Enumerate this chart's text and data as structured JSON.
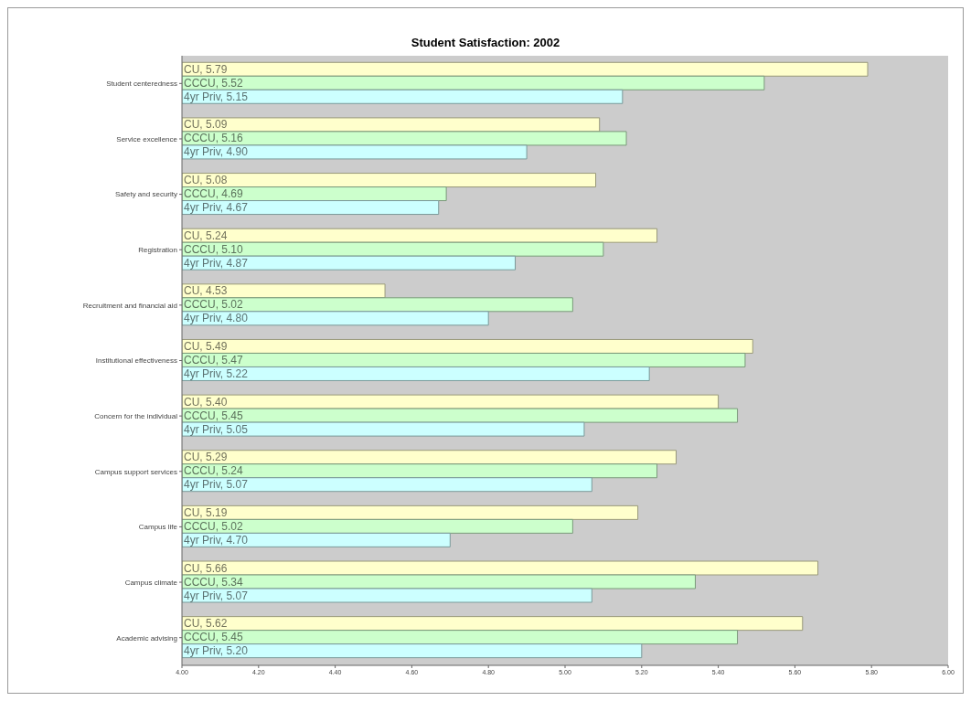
{
  "chart_data": {
    "type": "bar",
    "title": "Student Satisfaction: 2002",
    "orientation": "horizontal",
    "categories": [
      "Student centeredness",
      "Service excellence",
      "Safety and security",
      "Registration",
      "Recruitment and financial aid",
      "Institutional effectiveness",
      "Concern for the individual",
      "Campus support services",
      "Campus life",
      "Campus climate",
      "Academic advising"
    ],
    "series": [
      {
        "name": "CU",
        "color": "#ffffcc",
        "values": [
          5.79,
          5.09,
          5.08,
          5.24,
          4.53,
          5.49,
          5.4,
          5.29,
          5.19,
          5.66,
          5.62
        ],
        "value_labels": [
          ", 5.79",
          ", 5.09",
          ", 5.08",
          ", 5.24",
          ", 4.53",
          ", 5.49",
          ", 5.40",
          ", 5.29",
          ", 5.19",
          ", 5.66",
          ", 5.62"
        ]
      },
      {
        "name": "CCCU",
        "color": "#ccffcc",
        "values": [
          5.52,
          5.16,
          4.69,
          5.1,
          5.02,
          5.47,
          5.45,
          5.24,
          5.02,
          5.34,
          5.45
        ],
        "value_labels": [
          ", 5.52",
          ", 5.16",
          ", 4.69",
          ", 5.10",
          ", 5.02",
          ", 5.47",
          ", 5.45",
          ", 5.24",
          ", 5.02",
          ", 5.34",
          ", 5.45"
        ]
      },
      {
        "name": "4yr Priv",
        "color": "#ccffff",
        "values": [
          5.15,
          4.9,
          4.67,
          4.87,
          4.8,
          5.22,
          5.05,
          5.07,
          4.7,
          5.07,
          5.2
        ],
        "value_labels": [
          ", 5.15",
          ", 4.90",
          ", 4.67",
          ", 4.87",
          ", 4.80",
          ", 5.22",
          ", 5.05",
          ", 5.07",
          ", 4.70",
          ", 5.07",
          ", 5.20"
        ]
      }
    ],
    "xlim": [
      4,
      6
    ],
    "xticks": [
      {
        "value": 4,
        "label": "4.00"
      },
      {
        "value": 4.2,
        "label": "4.20"
      },
      {
        "value": 4.4,
        "label": "4.40"
      },
      {
        "value": 4.6,
        "label": "4.60"
      },
      {
        "value": 4.8,
        "label": "4.80"
      },
      {
        "value": 5,
        "label": "5.00"
      },
      {
        "value": 5.2,
        "label": "5.20"
      },
      {
        "value": 5.4,
        "label": "5.40"
      },
      {
        "value": 5.6,
        "label": "5.60"
      },
      {
        "value": 5.8,
        "label": "5.80"
      },
      {
        "value": 6,
        "label": "6.00"
      }
    ],
    "grid": false,
    "legend": false
  }
}
